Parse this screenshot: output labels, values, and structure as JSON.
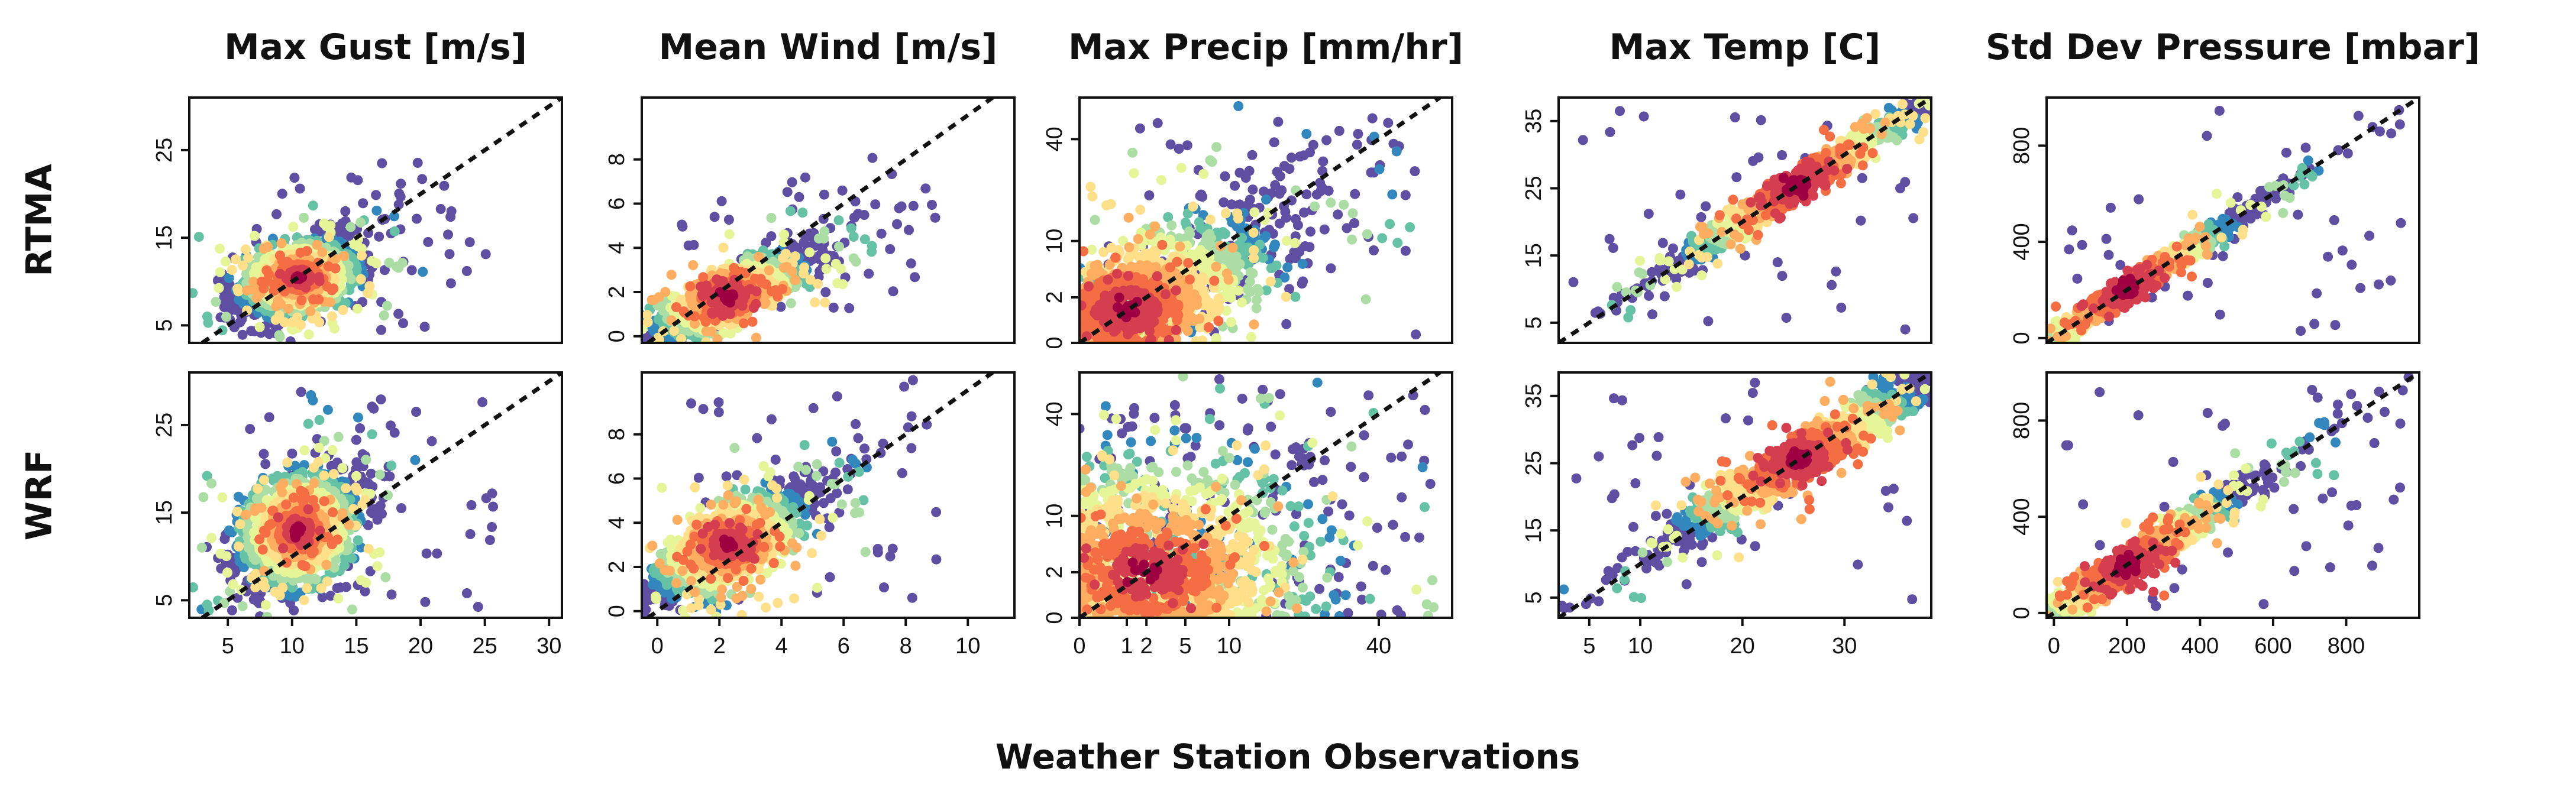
{
  "figure": {
    "xlabel": "Weather Station Observations",
    "rows": [
      "RTMA",
      "WRF"
    ],
    "palette": [
      "#5E4FA2",
      "#3288BD",
      "#66C2A5",
      "#ABDDA4",
      "#E6F598",
      "#FEE08B",
      "#FDAE61",
      "#F46D43",
      "#D53E4F",
      "#9E0142"
    ]
  },
  "chart_data": [
    {
      "type": "scatter",
      "title": "Max Gust [m/s]",
      "scale": "linear",
      "xlim": [
        2,
        31
      ],
      "ylim": [
        3,
        31
      ],
      "xticks": [
        5,
        10,
        15,
        20,
        25,
        30
      ],
      "yticks": [
        5,
        15,
        25
      ],
      "rows": {
        "RTMA": {
          "center": [
            10.5,
            10.5
          ],
          "spread": [
            2.3,
            2.2
          ],
          "corr": 0.45,
          "n": 1400,
          "out_x": [
            7,
            26
          ],
          "out_y": [
            4,
            22
          ]
        },
        "WRF": {
          "center": [
            10.5,
            13.0
          ],
          "spread": [
            2.3,
            3.3
          ],
          "corr": 0.3,
          "n": 1400,
          "out_x": [
            6,
            26
          ],
          "out_y": [
            4,
            29
          ]
        }
      }
    },
    {
      "type": "scatter",
      "title": "Mean Wind [m/s]",
      "scale": "linear",
      "xlim": [
        -0.5,
        11.5
      ],
      "ylim": [
        -0.3,
        10.8
      ],
      "xticks": [
        0,
        2,
        4,
        6,
        8,
        10
      ],
      "yticks": [
        0,
        2,
        4,
        6,
        8
      ],
      "rows": {
        "RTMA": {
          "center": [
            2.3,
            1.8
          ],
          "spread": [
            1.3,
            1.1
          ],
          "corr": 0.82,
          "n": 1400,
          "out_x": [
            0.2,
            9.0
          ],
          "out_y": [
            0,
            7.5
          ]
        },
        "WRF": {
          "center": [
            2.3,
            3.0
          ],
          "spread": [
            1.3,
            1.3
          ],
          "corr": 0.75,
          "n": 1400,
          "out_x": [
            0.2,
            9.0
          ],
          "out_y": [
            0.5,
            10.0
          ]
        }
      }
    },
    {
      "type": "scatter",
      "title": "Max Precip [mm/hr]",
      "scale": "sqrt",
      "xlim": [
        -0.5,
        62
      ],
      "ylim": [
        -0.3,
        58
      ],
      "xticks": [
        0,
        1,
        2,
        5,
        10,
        40
      ],
      "yticks": [
        0,
        2,
        10,
        40
      ],
      "rows": {
        "RTMA": {
          "center": [
            1.0,
            1.0
          ],
          "spread": [
            1.6,
            1.6
          ],
          "corr": 0.78,
          "n": 1400,
          "out_x": [
            0,
            55
          ],
          "out_y": [
            0,
            50
          ]
        },
        "WRF": {
          "center": [
            2.0,
            2.0
          ],
          "spread": [
            1.9,
            1.9
          ],
          "corr": 0.05,
          "n": 1400,
          "out_x": [
            0,
            55
          ],
          "out_y": [
            0,
            55
          ]
        }
      }
    },
    {
      "type": "scatter",
      "title": "Max Temp [C]",
      "scale": "linear",
      "xlim": [
        2,
        38.5
      ],
      "ylim": [
        2,
        38.5
      ],
      "xticks": [
        5,
        10,
        20,
        30
      ],
      "yticks": [
        5,
        15,
        25,
        35
      ],
      "rows": {
        "RTMA": {
          "center": [
            25.5,
            25.5
          ],
          "spread": [
            6.5,
            6.5
          ],
          "corr": 0.985,
          "n": 1400,
          "out_x": [
            3,
            37
          ],
          "out_y": [
            3,
            37
          ]
        },
        "WRF": {
          "center": [
            25.5,
            25.5
          ],
          "spread": [
            6.5,
            6.3
          ],
          "corr": 0.96,
          "n": 1400,
          "out_x": [
            3,
            37
          ],
          "out_y": [
            3,
            37
          ]
        }
      }
    },
    {
      "type": "scatter",
      "title": "Std Dev Pressure [mbar]",
      "scale": "linear",
      "xlim": [
        -20,
        1000
      ],
      "ylim": [
        -20,
        1000
      ],
      "xticks": [
        0,
        200,
        400,
        600,
        800
      ],
      "yticks": [
        0,
        400,
        800
      ],
      "rows": {
        "RTMA": {
          "center": [
            200,
            200
          ],
          "spread": [
            170,
            170
          ],
          "corr": 0.99,
          "n": 1400,
          "out_x": [
            20,
            960
          ],
          "out_y": [
            20,
            960
          ]
        },
        "WRF": {
          "center": [
            200,
            200
          ],
          "spread": [
            170,
            170
          ],
          "corr": 0.975,
          "n": 1400,
          "out_x": [
            20,
            960
          ],
          "out_y": [
            20,
            960
          ]
        }
      }
    }
  ]
}
